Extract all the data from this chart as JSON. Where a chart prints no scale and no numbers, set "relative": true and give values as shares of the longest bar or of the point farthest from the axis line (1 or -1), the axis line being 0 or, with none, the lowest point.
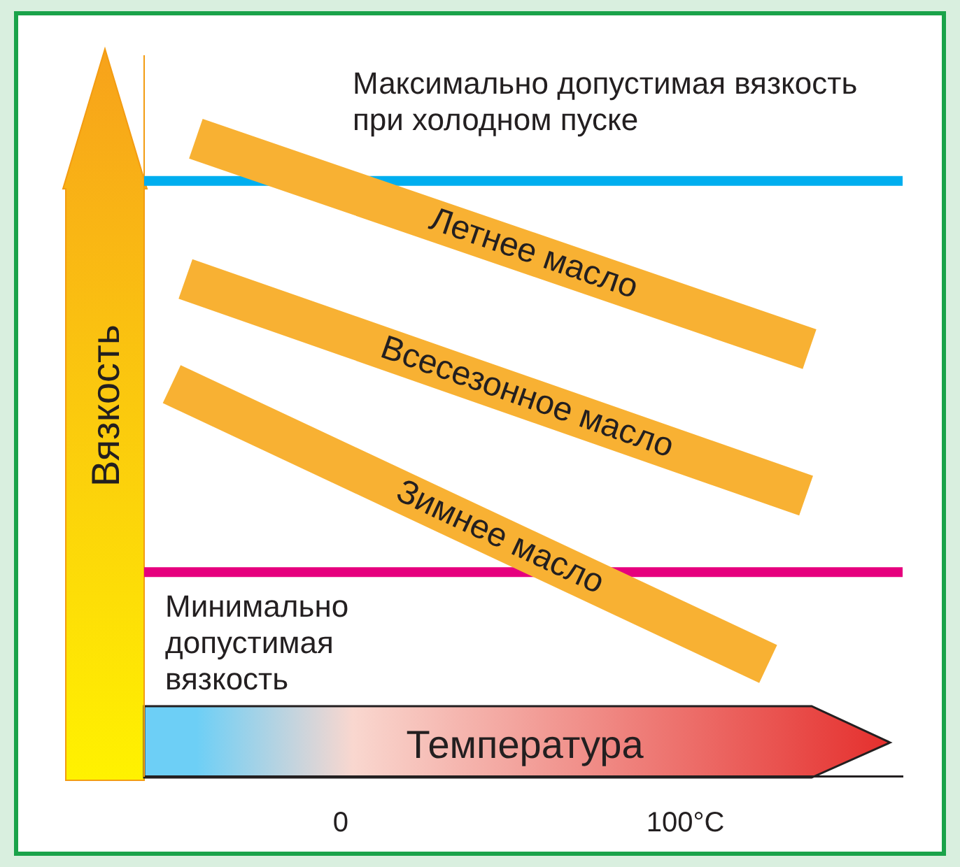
{
  "chart_data": {
    "type": "line",
    "relative": true,
    "xlabel": "Температура",
    "ylabel": "Вязкость",
    "xlim": [
      -57,
      163
    ],
    "xticks": [
      0,
      {
        "value": 100,
        "label": "100°C"
      }
    ],
    "tick_labels": "x",
    "series": [
      {
        "name": "Летнее масло",
        "color": "#f8b133",
        "x": [
          -42,
          136
        ],
        "values": [
          1,
          0.67
        ]
      },
      {
        "name": "Всесезонное масло",
        "color": "#f8b133",
        "x": [
          -45,
          135
        ],
        "values": [
          0.78,
          0.44
        ]
      },
      {
        "name": "Зимнее масло",
        "color": "#f8b133",
        "x": [
          -49,
          124
        ],
        "values": [
          0.615,
          0.176
        ]
      }
    ],
    "ref_lines": [
      {
        "axis": "y",
        "value": 0.934,
        "label": "Максимально допустимая вязкость  при холодном пуске",
        "color": "#00aeef"
      },
      {
        "axis": "y",
        "value": 0.32,
        "label": "Минимально допустимая вязкость",
        "color": "#e6007e"
      }
    ]
  }
}
